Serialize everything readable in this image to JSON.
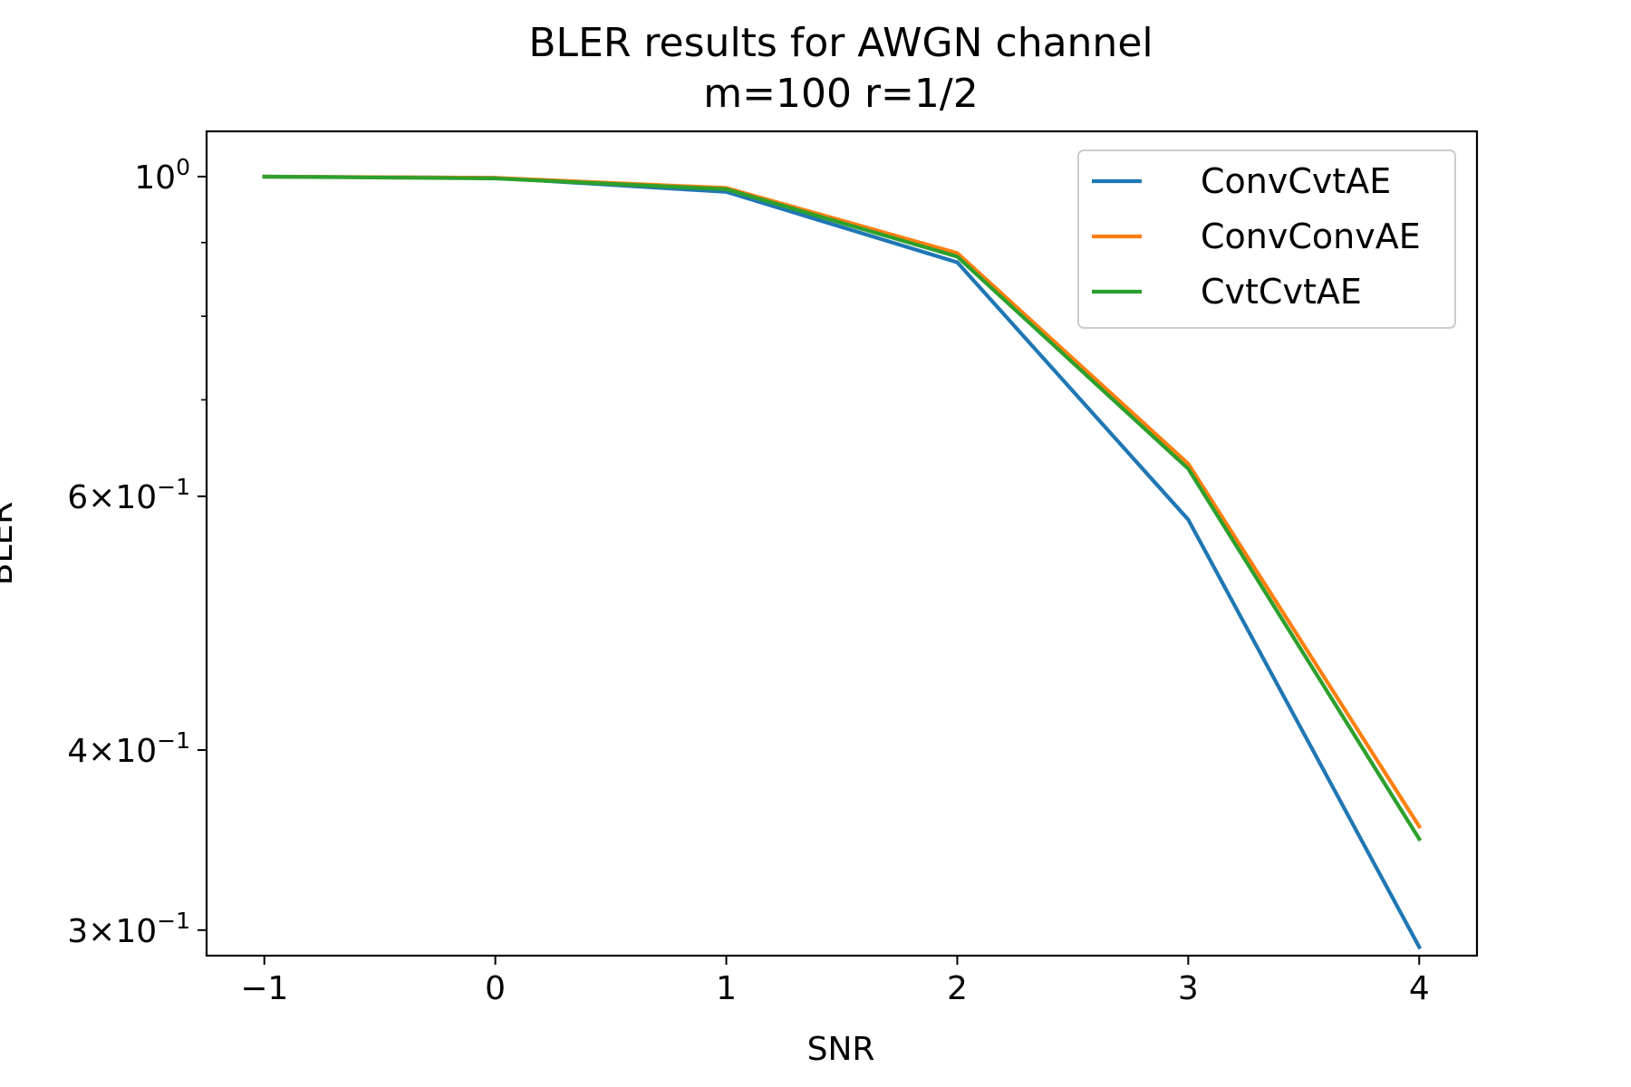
{
  "chart_data": {
    "type": "line",
    "title": "BLER results for AWGN channel",
    "subtitle": "m=100 r=1/2",
    "xlabel": "SNR",
    "ylabel": "BLER",
    "y_scale": "log",
    "xlim": [
      -1.25,
      4.25
    ],
    "ylim": [
      0.288,
      1.075
    ],
    "x": [
      -1,
      0,
      1,
      2,
      3,
      4
    ],
    "x_tick_labels": [
      "−1",
      "0",
      "1",
      "2",
      "3",
      "4"
    ],
    "y_ticks": [
      {
        "value": 1.0,
        "mantissa": "",
        "exponent": "0"
      },
      {
        "value": 0.6,
        "mantissa": "6",
        "exponent": "−1"
      },
      {
        "value": 0.4,
        "mantissa": "4",
        "exponent": "−1"
      },
      {
        "value": 0.3,
        "mantissa": "3",
        "exponent": "−1"
      }
    ],
    "y_minor_ticks": [
      0.7,
      0.8,
      0.9
    ],
    "grid": false,
    "legend_position": "top-right",
    "series": [
      {
        "name": "ConvCvtAE",
        "color": "#1f77b4",
        "values": [
          1.0,
          0.998,
          0.976,
          0.872,
          0.578,
          0.292
        ]
      },
      {
        "name": "ConvConvAE",
        "color": "#ff7f0e",
        "values": [
          1.0,
          0.998,
          0.982,
          0.885,
          0.632,
          0.354
        ]
      },
      {
        "name": "CvtCvtAE",
        "color": "#2ca02c",
        "values": [
          1.0,
          0.997,
          0.98,
          0.88,
          0.627,
          0.347
        ]
      }
    ]
  }
}
